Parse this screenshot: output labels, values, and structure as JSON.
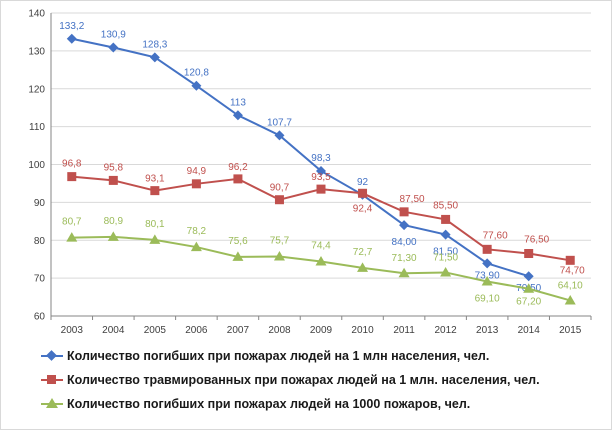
{
  "chart_data": {
    "type": "line",
    "title": "",
    "xlabel": "",
    "ylabel": "",
    "x": [
      "2003",
      "2004",
      "2005",
      "2006",
      "2007",
      "2008",
      "2009",
      "2010",
      "2011",
      "2012",
      "2013",
      "2014",
      "2015"
    ],
    "ylim": [
      60,
      140
    ],
    "yticks": [
      "60",
      "70",
      "80",
      "90",
      "100",
      "110",
      "120",
      "130",
      "140"
    ],
    "grid": "horizontal",
    "legend_position": "bottom",
    "series": [
      {
        "name": "Количество погибших при пожарах людей на 1 млн населения, чел.",
        "color": "#4472c4",
        "marker": "diamond",
        "values": [
          133.2,
          130.9,
          128.3,
          120.8,
          113,
          107.7,
          98.3,
          92,
          84.0,
          81.5,
          73.9,
          70.5,
          null
        ],
        "labels": [
          "133,2",
          "130,9",
          "128,3",
          "120,8",
          "113",
          "107,7",
          "98,3",
          "92",
          "84,00",
          "81,50",
          "73,90",
          "70,50",
          ""
        ]
      },
      {
        "name": "Количество травмированных при пожарах людей на 1 млн. населения, чел.",
        "color": "#c0504d",
        "marker": "square",
        "values": [
          96.8,
          95.8,
          93.1,
          94.9,
          96.2,
          90.7,
          93.5,
          92.4,
          87.5,
          85.5,
          77.6,
          76.5,
          74.7
        ],
        "labels": [
          "96,8",
          "95,8",
          "93,1",
          "94,9",
          "96,2",
          "90,7",
          "93,5",
          "92,4",
          "87,50",
          "85,50",
          "77,60",
          "76,50",
          "74,70"
        ]
      },
      {
        "name": "Количество погибших при пожарах людей на 1000 пожаров, чел.",
        "color": "#9bbb59",
        "marker": "triangle",
        "values": [
          80.7,
          80.9,
          80.1,
          78.2,
          75.6,
          75.7,
          74.4,
          72.7,
          71.3,
          71.5,
          69.1,
          67.2,
          64.1
        ],
        "labels": [
          "80,7",
          "80,9",
          "80,1",
          "78,2",
          "75,6",
          "75,7",
          "74,4",
          "72,7",
          "71,30",
          "71,50",
          "69,10",
          "67,20",
          "64,10"
        ]
      }
    ]
  }
}
